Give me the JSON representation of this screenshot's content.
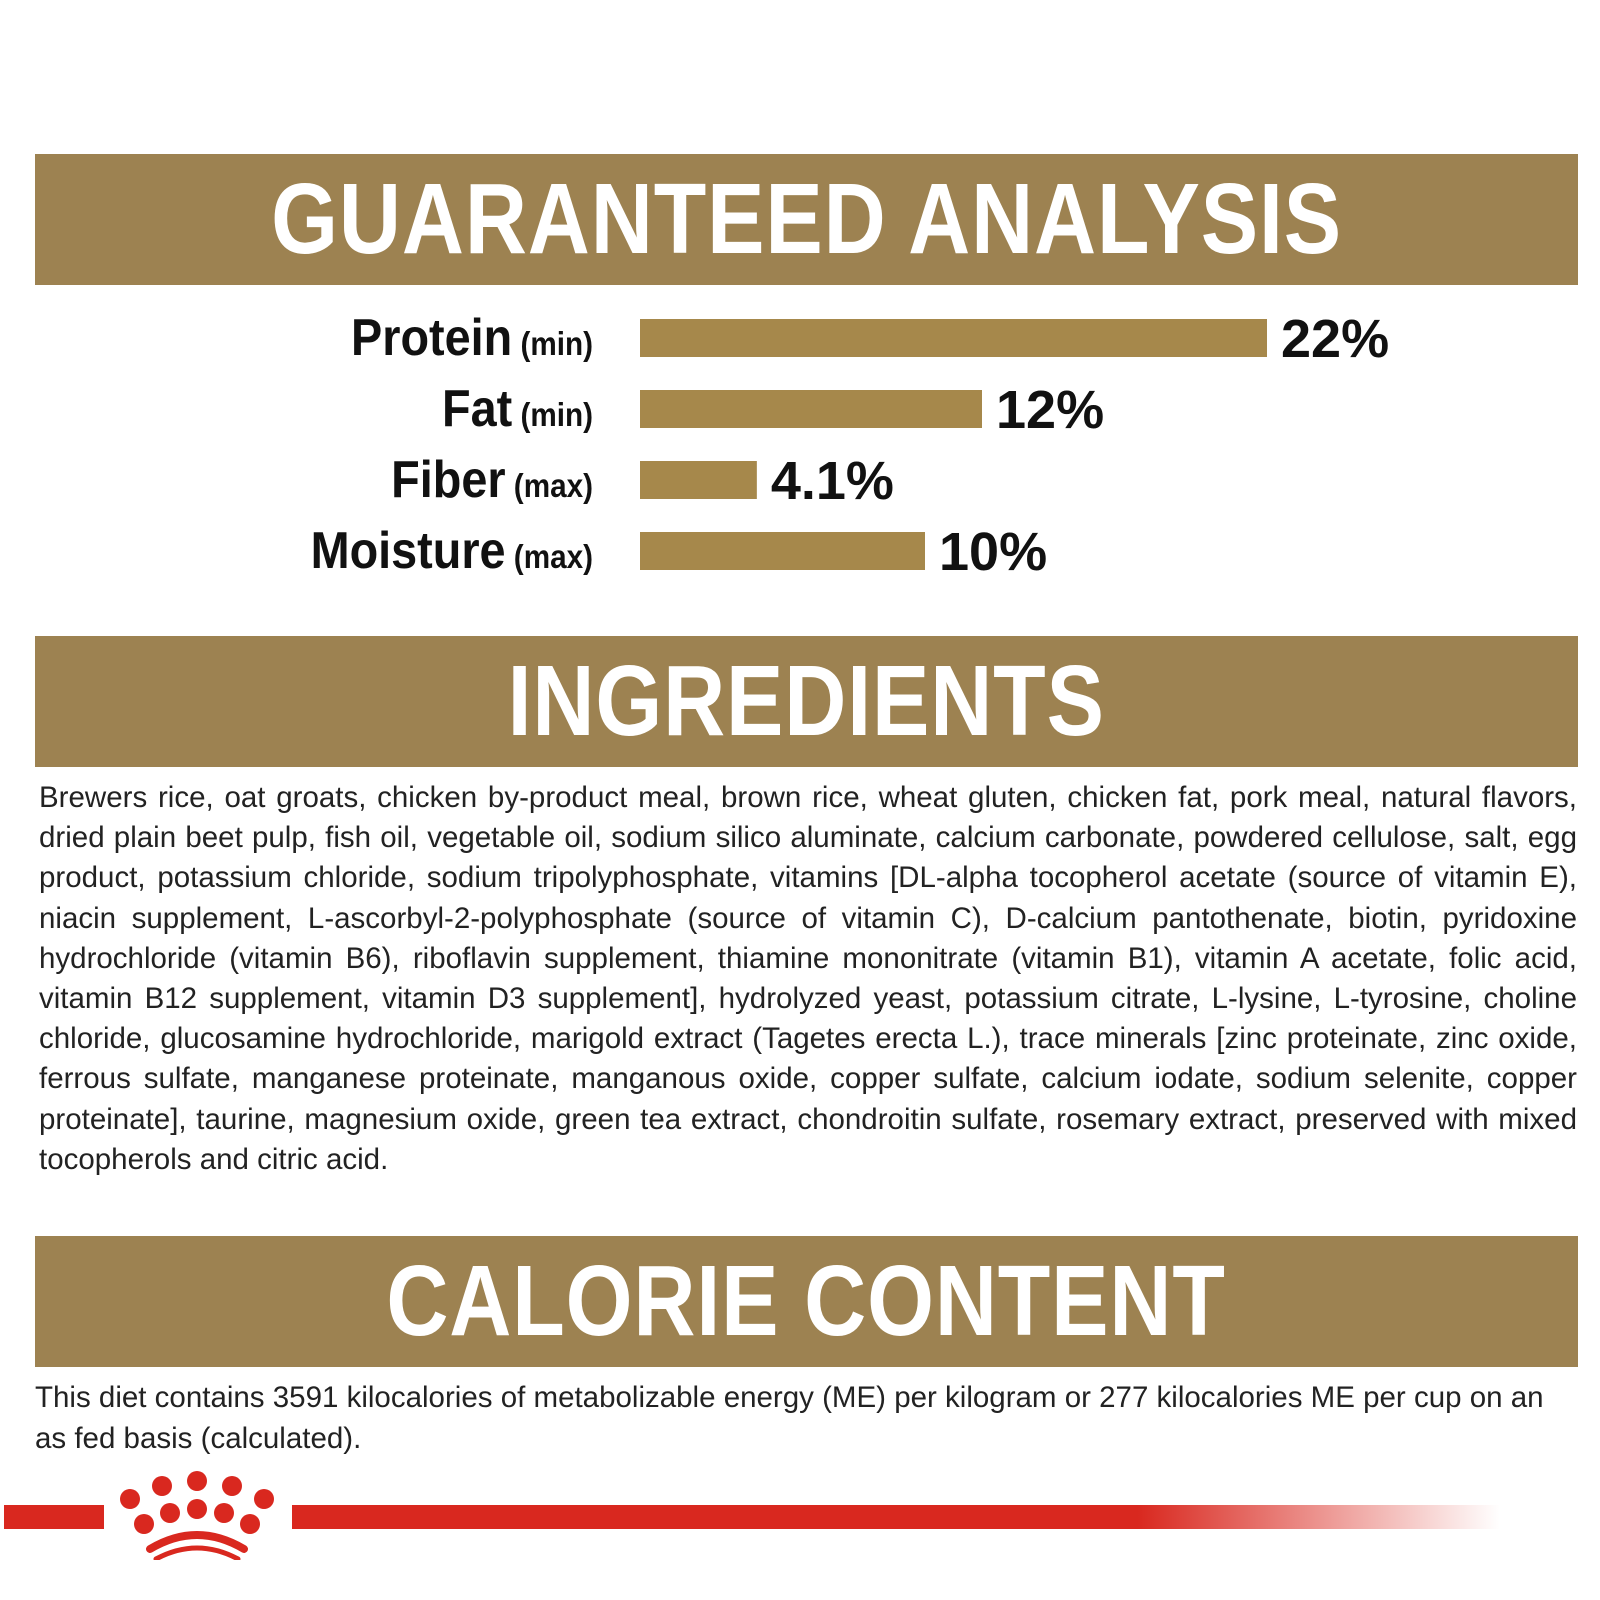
{
  "guaranteed_analysis": {
    "title": "GUARANTEED ANALYSIS"
  },
  "chart_data": {
    "type": "bar",
    "orientation": "horizontal",
    "categories": [
      "Protein",
      "Fat",
      "Fiber",
      "Moisture"
    ],
    "qualifiers": [
      "(min)",
      "(min)",
      "(max)",
      "(max)"
    ],
    "values": [
      22,
      12,
      4.1,
      10
    ],
    "value_labels": [
      "22%",
      "12%",
      "4.1%",
      "10%"
    ],
    "unit": "%",
    "bar_color": "#a6884b",
    "grid": false
  },
  "ingredients": {
    "title": "INGREDIENTS",
    "text": "Brewers rice, oat groats, chicken by-product meal, brown rice, wheat gluten, chicken fat, pork meal, natural flavors, dried plain beet pulp, fish oil, vegetable oil, sodium silico aluminate, calcium carbonate, powdered cellulose, salt, egg product, potassium chloride, sodium tripolyphosphate, vitamins [DL-alpha tocopherol acetate (source of vitamin E), niacin supplement, L-ascorbyl-2-polyphosphate (source of vitamin C), D-calcium pantothenate, biotin, pyridoxine hydrochloride (vitamin B6), riboflavin supplement, thiamine mononitrate (vitamin B1), vitamin A acetate, folic acid, vitamin B12 supplement, vitamin D3 supplement], hydrolyzed yeast, potassium citrate, L-lysine, L-tyrosine, choline chloride, glucosamine hydrochloride, marigold extract (Tagetes erecta L.), trace minerals [zinc proteinate, zinc oxide, ferrous sulfate, manganese proteinate, manganous oxide, copper sulfate, calcium iodate, sodium selenite, copper proteinate], taurine, magnesium oxide, green tea extract, chondroitin sulfate, rosemary extract, preserved with mixed tocopherols and citric acid."
  },
  "calorie_content": {
    "title": "CALORIE CONTENT",
    "text": "This diet contains 3591 kilocalories of metabolizable energy (ME) per kilogram or 277 kilocalories ME per cup on an as fed basis (calculated)."
  },
  "colors": {
    "band": "#9d8251",
    "brand_red": "#d9281f"
  },
  "logo": {
    "name": "royal-canin-crown-logo"
  }
}
